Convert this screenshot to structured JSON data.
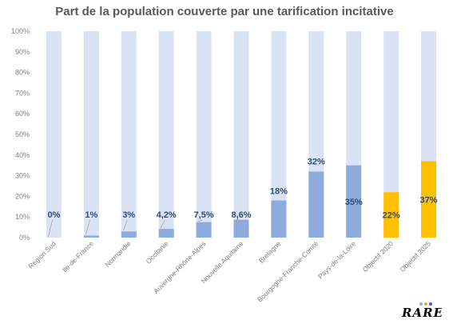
{
  "chart_data": {
    "type": "bar",
    "title": "Part de la population couverte par une tarification incitative",
    "categories": [
      "Region Sud",
      "Ile-de-France",
      "Normandie",
      "Occitanie",
      "Auvergne-Rhône-Alpes",
      "Nouvelle Aquitaine",
      "Bretagne",
      "Bourgogne-Franche-Comté",
      "Pays-de-la-Loire",
      "Objectif 2020",
      "Objectif 2025"
    ],
    "values": [
      0,
      1,
      3,
      4.2,
      7.5,
      8.6,
      18,
      32,
      35,
      22,
      37
    ],
    "data_labels": [
      "0%",
      "1%",
      "3%",
      "4,2%",
      "7,5%",
      "8,6%",
      "18%",
      "32%",
      "35%",
      "22%",
      "37%"
    ],
    "ylim": [
      0,
      100
    ],
    "yticks": [
      "0%",
      "10%",
      "20%",
      "30%",
      "40%",
      "50%",
      "60%",
      "70%",
      "80%",
      "90%",
      "100%"
    ],
    "xlabel": "",
    "ylabel": "",
    "background_bar_value": 100,
    "colors": {
      "background_bar": "#dae3f3",
      "region_bar": "#8faadc",
      "objective_bar": "#ffc000",
      "label": "#2f4d7a",
      "axis_text": "#808080"
    },
    "bar_colors": [
      "region",
      "region",
      "region",
      "region",
      "region",
      "region",
      "region",
      "region",
      "region",
      "objective",
      "objective"
    ]
  },
  "logo": {
    "text": "RARE",
    "dot_colors": [
      "#7fb3e0",
      "#f0a030",
      "#2f6db5"
    ]
  }
}
